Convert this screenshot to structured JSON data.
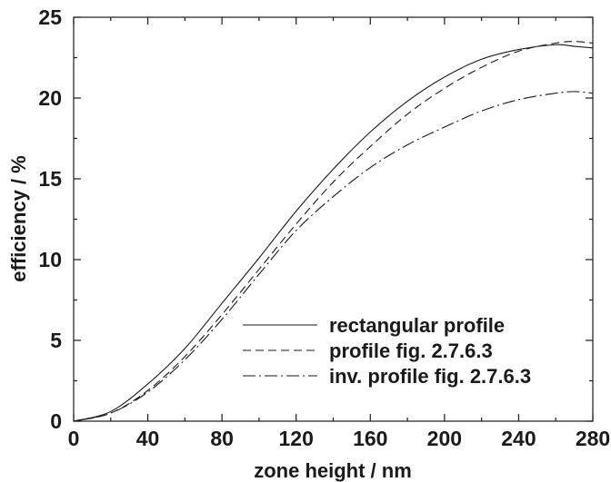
{
  "chart_data": {
    "type": "line",
    "xlabel": "zone height / nm",
    "ylabel": "efficiency / %",
    "xlim": [
      0,
      280
    ],
    "ylim": [
      0,
      25
    ],
    "x_ticks": [
      0,
      40,
      80,
      120,
      160,
      200,
      240,
      280
    ],
    "y_ticks": [
      0,
      5,
      10,
      15,
      20,
      25
    ],
    "grid": false,
    "legend_position": "bottom-right",
    "series": [
      {
        "name": "rectangular profile",
        "style": "solid",
        "x": [
          0,
          20,
          40,
          60,
          80,
          100,
          120,
          140,
          160,
          180,
          200,
          220,
          240,
          260,
          270,
          280
        ],
        "y": [
          0,
          0.6,
          2.3,
          4.5,
          7.3,
          10.1,
          13.0,
          15.6,
          17.9,
          19.8,
          21.3,
          22.4,
          23.0,
          23.3,
          23.2,
          23.1
        ]
      },
      {
        "name": "profile fig. 2.7.6.3",
        "style": "dashed",
        "x": [
          0,
          20,
          40,
          60,
          80,
          100,
          120,
          140,
          160,
          180,
          200,
          220,
          240,
          260,
          270,
          280
        ],
        "y": [
          0,
          0.5,
          1.9,
          4.0,
          6.6,
          9.4,
          12.2,
          14.8,
          17.0,
          19.0,
          20.6,
          21.9,
          22.9,
          23.4,
          23.5,
          23.4
        ]
      },
      {
        "name": "inv. profile fig. 2.7.6.3",
        "style": "dashdot",
        "x": [
          0,
          20,
          40,
          60,
          80,
          100,
          120,
          140,
          160,
          180,
          200,
          220,
          240,
          260,
          270,
          280
        ],
        "y": [
          0,
          0.5,
          1.8,
          3.8,
          6.3,
          9.1,
          11.8,
          13.9,
          15.7,
          17.1,
          18.2,
          19.2,
          19.9,
          20.3,
          20.4,
          20.3
        ]
      }
    ]
  }
}
